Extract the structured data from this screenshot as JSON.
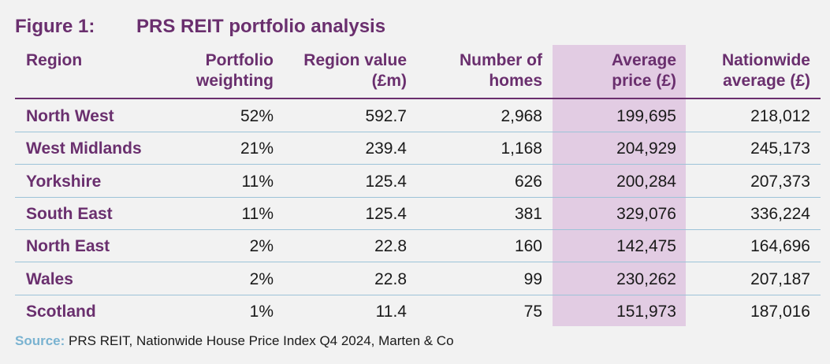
{
  "title": {
    "figure": "Figure 1:",
    "text": "PRS REIT portfolio analysis"
  },
  "headers": {
    "region": "Region",
    "weighting_1": "Portfolio",
    "weighting_2": "weighting",
    "value_1": "Region value",
    "value_2": "(£m)",
    "homes_1": "Number of",
    "homes_2": "homes",
    "price_1": "Average",
    "price_2": "price (£)",
    "nat_1": "Nationwide",
    "nat_2": "average (£)"
  },
  "rows": [
    {
      "region": "North West",
      "weighting": "52%",
      "value": "592.7",
      "homes": "2,968",
      "price": "199,695",
      "nationwide": "218,012"
    },
    {
      "region": "West Midlands",
      "weighting": "21%",
      "value": "239.4",
      "homes": "1,168",
      "price": "204,929",
      "nationwide": "245,173"
    },
    {
      "region": "Yorkshire",
      "weighting": "11%",
      "value": "125.4",
      "homes": "626",
      "price": "200,284",
      "nationwide": "207,373"
    },
    {
      "region": "South East",
      "weighting": "11%",
      "value": "125.4",
      "homes": "381",
      "price": "329,076",
      "nationwide": "336,224"
    },
    {
      "region": "North East",
      "weighting": "2%",
      "value": "22.8",
      "homes": "160",
      "price": "142,475",
      "nationwide": "164,696"
    },
    {
      "region": "Wales",
      "weighting": "2%",
      "value": "22.8",
      "homes": "99",
      "price": "230,262",
      "nationwide": "207,187"
    },
    {
      "region": "Scotland",
      "weighting": "1%",
      "value": "11.4",
      "homes": "75",
      "price": "151,973",
      "nationwide": "187,016"
    }
  ],
  "source": {
    "label": "Source:",
    "text": "PRS REIT, Nationwide House Price Index Q4 2024, Marten & Co"
  },
  "colors": {
    "accent": "#6a2f6e",
    "highlight": "#e2cce3",
    "separator": "#9cc3d8",
    "source_label": "#7ab3d1"
  }
}
